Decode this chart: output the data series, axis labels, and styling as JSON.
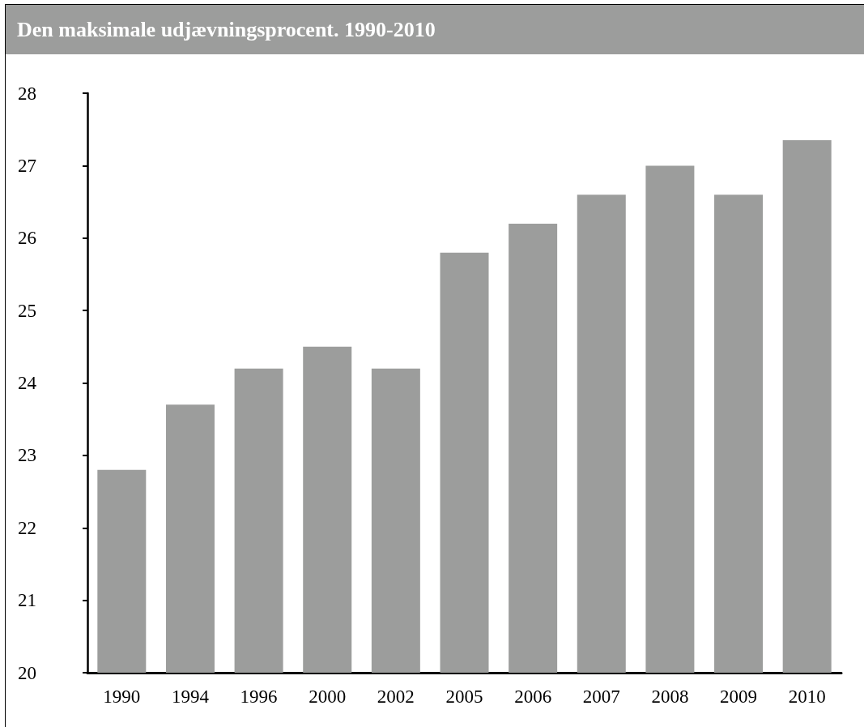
{
  "chart_data": {
    "type": "bar",
    "title": "Den maksimale udjævningsprocent. 1990-2010",
    "categories": [
      "1990",
      "1994",
      "1996",
      "2000",
      "2002",
      "2005",
      "2006",
      "2007",
      "2008",
      "2009",
      "2010"
    ],
    "values": [
      22.8,
      23.7,
      24.2,
      24.5,
      24.2,
      25.8,
      26.2,
      26.6,
      27.0,
      26.6,
      27.35
    ],
    "color": "#9c9d9c",
    "ylim": [
      20,
      28
    ],
    "yticks": [
      20,
      21,
      22,
      23,
      24,
      25,
      26,
      27,
      28
    ],
    "grid": false
  }
}
